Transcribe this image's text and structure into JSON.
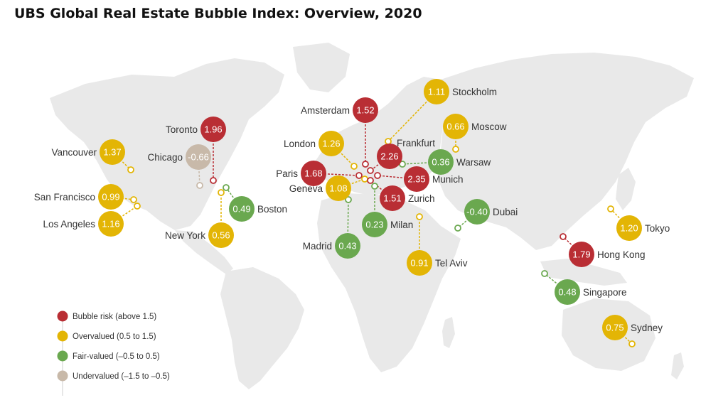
{
  "title": "UBS Global Real Estate Bubble Index: Overview, 2020",
  "colors": {
    "bubble_risk": "#b92e34",
    "overvalued": "#e3b505",
    "fair_valued": "#6aa84f",
    "undervalued": "#c8b9a9",
    "land": "#e9e9e9"
  },
  "legend": [
    {
      "category": "bubble_risk",
      "label": "Bubble risk (above 1.5)"
    },
    {
      "category": "overvalued",
      "label": "Overvalued (0.5 to 1.5)"
    },
    {
      "category": "fair_valued",
      "label": "Fair-valued (–0.5 to 0.5)"
    },
    {
      "category": "undervalued",
      "label": "Undervalued (–1.5 to –0.5)"
    }
  ],
  "cities": [
    {
      "name": "Toronto",
      "value": "1.96",
      "category": "bubble_risk"
    },
    {
      "name": "Vancouver",
      "value": "1.37",
      "category": "overvalued"
    },
    {
      "name": "Chicago",
      "value": "-0.66",
      "category": "undervalued"
    },
    {
      "name": "San Francisco",
      "value": "0.99",
      "category": "overvalued"
    },
    {
      "name": "Los Angeles",
      "value": "1.16",
      "category": "overvalued"
    },
    {
      "name": "Boston",
      "value": "0.49",
      "category": "fair_valued"
    },
    {
      "name": "New York",
      "value": "0.56",
      "category": "overvalued"
    },
    {
      "name": "Amsterdam",
      "value": "1.52",
      "category": "bubble_risk"
    },
    {
      "name": "London",
      "value": "1.26",
      "category": "overvalued"
    },
    {
      "name": "Paris",
      "value": "1.68",
      "category": "bubble_risk"
    },
    {
      "name": "Geneva",
      "value": "1.08",
      "category": "overvalued"
    },
    {
      "name": "Madrid",
      "value": "0.43",
      "category": "fair_valued"
    },
    {
      "name": "Frankfurt",
      "value": "2.26",
      "category": "bubble_risk"
    },
    {
      "name": "Munich",
      "value": "2.35",
      "category": "bubble_risk"
    },
    {
      "name": "Zurich",
      "value": "1.51",
      "category": "bubble_risk"
    },
    {
      "name": "Milan",
      "value": "0.23",
      "category": "fair_valued"
    },
    {
      "name": "Stockholm",
      "value": "1.11",
      "category": "overvalued"
    },
    {
      "name": "Warsaw",
      "value": "0.36",
      "category": "fair_valued"
    },
    {
      "name": "Moscow",
      "value": "0.66",
      "category": "overvalued"
    },
    {
      "name": "Dubai",
      "value": "-0.40",
      "category": "fair_valued"
    },
    {
      "name": "Tel Aviv",
      "value": "0.91",
      "category": "overvalued"
    },
    {
      "name": "Tokyo",
      "value": "1.20",
      "category": "overvalued"
    },
    {
      "name": "Hong Kong",
      "value": "1.79",
      "category": "bubble_risk"
    },
    {
      "name": "Singapore",
      "value": "0.48",
      "category": "fair_valued"
    },
    {
      "name": "Sydney",
      "value": "0.75",
      "category": "overvalued"
    }
  ]
}
